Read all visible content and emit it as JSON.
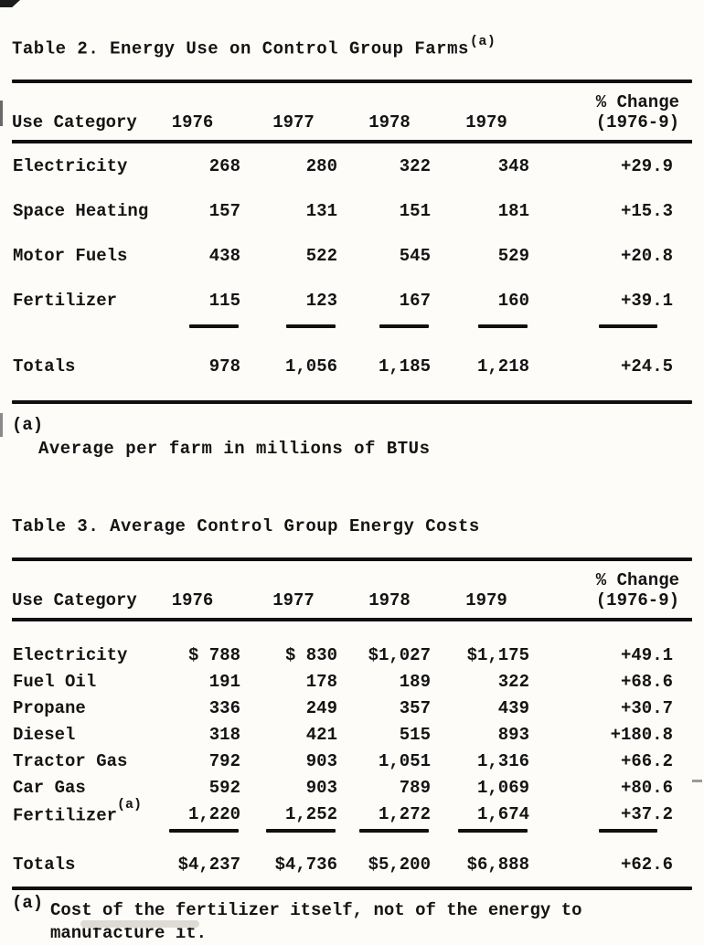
{
  "doc": {
    "table2": {
      "title": "Table 2. Energy Use on Control Group Farms",
      "title_note": "(a)",
      "header": {
        "category": "Use Category",
        "years": [
          "1976",
          "1977",
          "1978",
          "1979"
        ],
        "change_line1": "% Change",
        "change_line2": "(1976-9)"
      },
      "rows": [
        {
          "category": "Electricity",
          "values": [
            "268",
            "280",
            "322",
            "348"
          ],
          "change": "+29.9"
        },
        {
          "category": "Space Heating",
          "values": [
            "157",
            "131",
            "151",
            "181"
          ],
          "change": "+15.3"
        },
        {
          "category": "Motor Fuels",
          "values": [
            "438",
            "522",
            "545",
            "529"
          ],
          "change": "+20.8"
        },
        {
          "category": "Fertilizer",
          "values": [
            "115",
            "123",
            "167",
            "160"
          ],
          "change": "+39.1"
        }
      ],
      "totals": {
        "category": "Totals",
        "values": [
          "978",
          "1,056",
          "1,185",
          "1,218"
        ],
        "change": "+24.5"
      },
      "footnote": {
        "marker": "(a)",
        "text": "Average per farm in millions of BTUs"
      }
    },
    "table3": {
      "title": "Table 3. Average Control Group Energy Costs",
      "header": {
        "category": "Use Category",
        "years": [
          "1976",
          "1977",
          "1978",
          "1979"
        ],
        "change_line1": "% Change",
        "change_line2": "(1976-9)"
      },
      "rows": [
        {
          "category": "Electricity",
          "note": "",
          "values": [
            "$ 788",
            "$ 830",
            "$1,027",
            "$1,175"
          ],
          "change": "+49.1"
        },
        {
          "category": "Fuel Oil",
          "note": "",
          "values": [
            "191",
            "178",
            "189",
            "322"
          ],
          "change": "+68.6"
        },
        {
          "category": "Propane",
          "note": "",
          "values": [
            "336",
            "249",
            "357",
            "439"
          ],
          "change": "+30.7"
        },
        {
          "category": "Diesel",
          "note": "",
          "values": [
            "318",
            "421",
            "515",
            "893"
          ],
          "change": "+180.8"
        },
        {
          "category": "Tractor Gas",
          "note": "",
          "values": [
            "792",
            "903",
            "1,051",
            "1,316"
          ],
          "change": "+66.2"
        },
        {
          "category": "Car Gas",
          "note": "",
          "values": [
            "592",
            "903",
            "789",
            "1,069"
          ],
          "change": "+80.6"
        },
        {
          "category": "Fertilizer",
          "note": "(a)",
          "values": [
            "1,220",
            "1,252",
            "1,272",
            "1,674"
          ],
          "change": "+37.2"
        }
      ],
      "totals": {
        "category": "Totals",
        "values": [
          "$4,237",
          "$4,736",
          "$5,200",
          "$6,888"
        ],
        "change": "+62.6"
      },
      "footnote": {
        "marker": "(a)",
        "text": "Cost of the fertilizer itself, not of the energy to manufacture it."
      }
    }
  }
}
